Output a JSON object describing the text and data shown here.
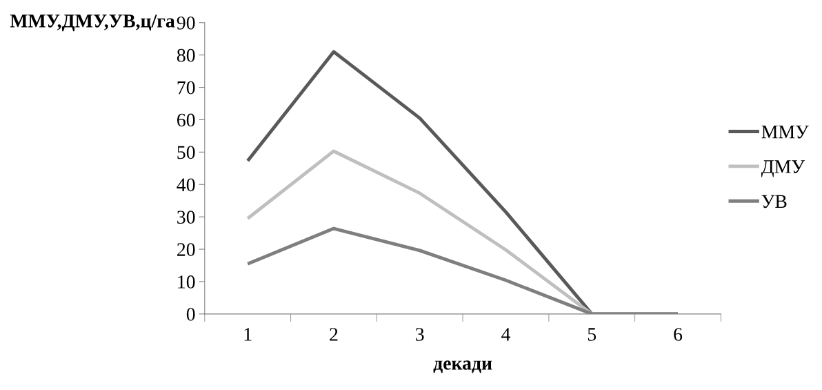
{
  "chart_data": {
    "type": "line",
    "xlabel": "декади",
    "ylabel": "ММУ,ДМУ,УВ,ц/га",
    "categories": [
      "1",
      "2",
      "3",
      "4",
      "5",
      "6"
    ],
    "series": [
      {
        "name": "ММУ",
        "color": "#595959",
        "values": [
          47.3,
          81,
          60.5,
          31.5,
          0,
          0
        ]
      },
      {
        "name": "ДМУ",
        "color": "#bfbfbf",
        "values": [
          29.5,
          50.3,
          37.3,
          19.8,
          0,
          0
        ]
      },
      {
        "name": "УВ",
        "color": "#7f7f7f",
        "values": [
          15.5,
          26.4,
          19.6,
          10.4,
          0,
          0
        ]
      }
    ],
    "ylim": [
      0,
      90
    ],
    "yticks": [
      0,
      10,
      20,
      30,
      40,
      50,
      60,
      70,
      80,
      90
    ],
    "grid": false,
    "legend": "right",
    "marker": "none",
    "line_style": "solid"
  }
}
